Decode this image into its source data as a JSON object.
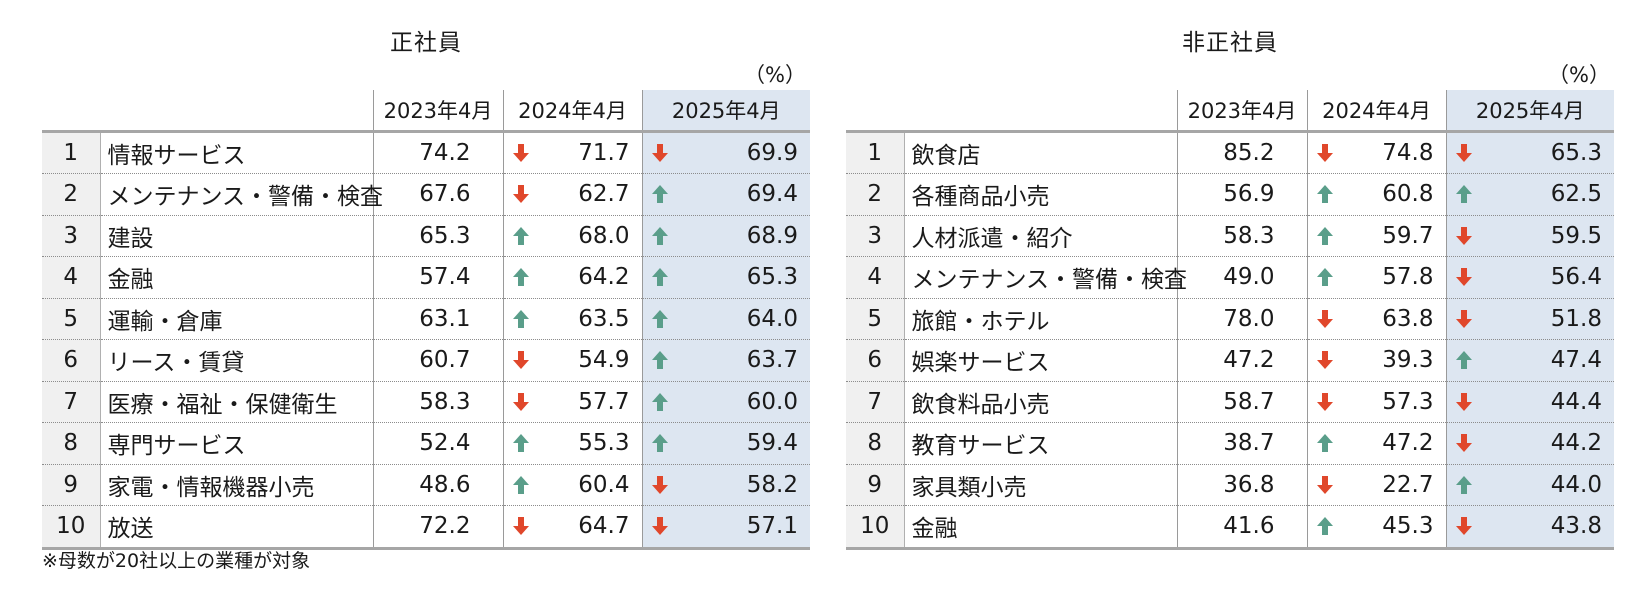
{
  "colors": {
    "up": "#5a9e8a",
    "down": "#e0472b",
    "highlight": "#dde6f1"
  },
  "icons": {
    "up": "up-arrow-icon",
    "down": "down-arrow-icon"
  },
  "headers": {
    "y2023": "2023年4月",
    "y2024": "2024年4月",
    "y2025": "2025年4月",
    "unit": "（%）"
  },
  "left": {
    "title": "正社員",
    "rows": [
      {
        "rank": "1",
        "name": "情報サービス",
        "v2023": "74.2",
        "d2024": "down",
        "v2024": "71.7",
        "d2025": "down",
        "v2025": "69.9"
      },
      {
        "rank": "2",
        "name": "メンテナンス・警備・検査",
        "v2023": "67.6",
        "d2024": "down",
        "v2024": "62.7",
        "d2025": "up",
        "v2025": "69.4"
      },
      {
        "rank": "3",
        "name": "建設",
        "v2023": "65.3",
        "d2024": "up",
        "v2024": "68.0",
        "d2025": "up",
        "v2025": "68.9"
      },
      {
        "rank": "4",
        "name": "金融",
        "v2023": "57.4",
        "d2024": "up",
        "v2024": "64.2",
        "d2025": "up",
        "v2025": "65.3"
      },
      {
        "rank": "5",
        "name": "運輸・倉庫",
        "v2023": "63.1",
        "d2024": "up",
        "v2024": "63.5",
        "d2025": "up",
        "v2025": "64.0"
      },
      {
        "rank": "6",
        "name": "リース・賃貸",
        "v2023": "60.7",
        "d2024": "down",
        "v2024": "54.9",
        "d2025": "up",
        "v2025": "63.7"
      },
      {
        "rank": "7",
        "name": "医療・福祉・保健衛生",
        "v2023": "58.3",
        "d2024": "down",
        "v2024": "57.7",
        "d2025": "up",
        "v2025": "60.0"
      },
      {
        "rank": "8",
        "name": "専門サービス",
        "v2023": "52.4",
        "d2024": "up",
        "v2024": "55.3",
        "d2025": "up",
        "v2025": "59.4"
      },
      {
        "rank": "9",
        "name": "家電・情報機器小売",
        "v2023": "48.6",
        "d2024": "up",
        "v2024": "60.4",
        "d2025": "down",
        "v2025": "58.2"
      },
      {
        "rank": "10",
        "name": "放送",
        "v2023": "72.2",
        "d2024": "down",
        "v2024": "64.7",
        "d2025": "down",
        "v2025": "57.1"
      }
    ]
  },
  "right": {
    "title": "非正社員",
    "rows": [
      {
        "rank": "1",
        "name": "飲食店",
        "v2023": "85.2",
        "d2024": "down",
        "v2024": "74.8",
        "d2025": "down",
        "v2025": "65.3"
      },
      {
        "rank": "2",
        "name": "各種商品小売",
        "v2023": "56.9",
        "d2024": "up",
        "v2024": "60.8",
        "d2025": "up",
        "v2025": "62.5"
      },
      {
        "rank": "3",
        "name": "人材派遣・紹介",
        "v2023": "58.3",
        "d2024": "up",
        "v2024": "59.7",
        "d2025": "down",
        "v2025": "59.5"
      },
      {
        "rank": "4",
        "name": "メンテナンス・警備・検査",
        "v2023": "49.0",
        "d2024": "up",
        "v2024": "57.8",
        "d2025": "down",
        "v2025": "56.4"
      },
      {
        "rank": "5",
        "name": "旅館・ホテル",
        "v2023": "78.0",
        "d2024": "down",
        "v2024": "63.8",
        "d2025": "down",
        "v2025": "51.8"
      },
      {
        "rank": "6",
        "name": "娯楽サービス",
        "v2023": "47.2",
        "d2024": "down",
        "v2024": "39.3",
        "d2025": "up",
        "v2025": "47.4"
      },
      {
        "rank": "7",
        "name": "飲食料品小売",
        "v2023": "58.7",
        "d2024": "down",
        "v2024": "57.3",
        "d2025": "down",
        "v2025": "44.4"
      },
      {
        "rank": "8",
        "name": "教育サービス",
        "v2023": "38.7",
        "d2024": "up",
        "v2024": "47.2",
        "d2025": "down",
        "v2025": "44.2"
      },
      {
        "rank": "9",
        "name": "家具類小売",
        "v2023": "36.8",
        "d2024": "down",
        "v2024": "22.7",
        "d2025": "up",
        "v2025": "44.0"
      },
      {
        "rank": "10",
        "name": "金融",
        "v2023": "41.6",
        "d2024": "up",
        "v2024": "45.3",
        "d2025": "down",
        "v2025": "43.8"
      }
    ]
  },
  "note": "※母数が20社以上の業種が対象"
}
